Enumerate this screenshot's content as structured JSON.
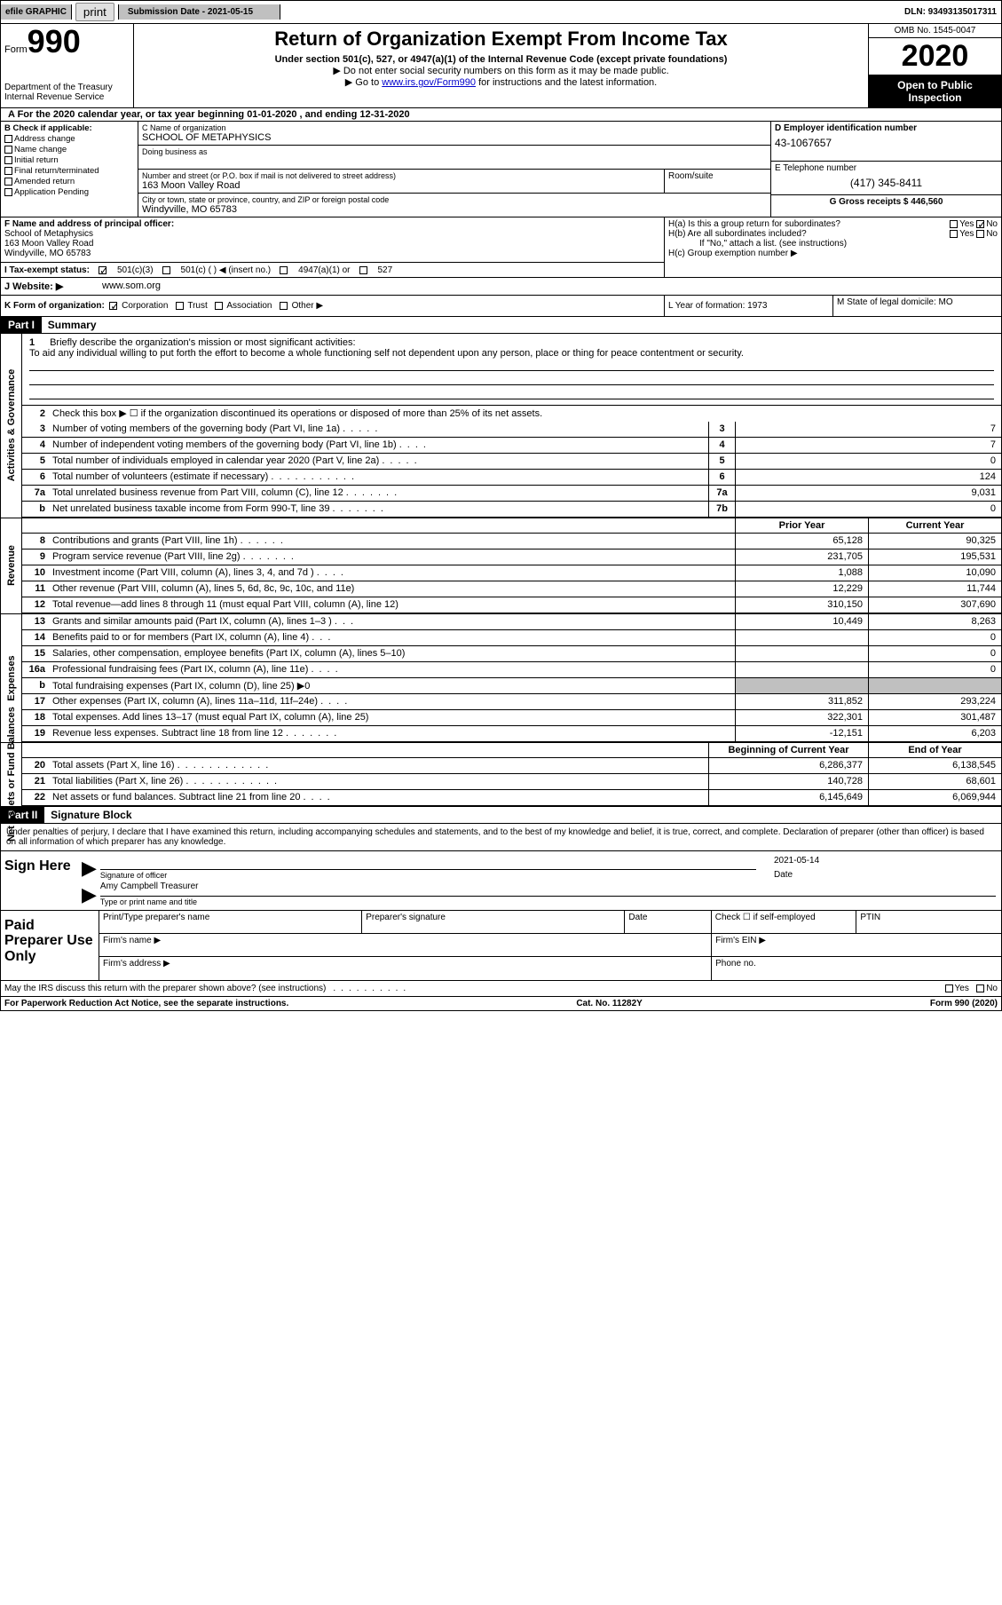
{
  "topbar": {
    "efile_prefix": "efile",
    "efile_text": "GRAPHIC",
    "print": "print",
    "submission_label": "Submission Date - 2021-05-15",
    "dln": "DLN: 93493135017311"
  },
  "header": {
    "form_word": "Form",
    "form_num": "990",
    "dept1": "Department of the Treasury",
    "dept2": "Internal Revenue Service",
    "title": "Return of Organization Exempt From Income Tax",
    "sub1": "Under section 501(c), 527, or 4947(a)(1) of the Internal Revenue Code (except private foundations)",
    "arrow1": "▶ Do not enter social security numbers on this form as it may be made public.",
    "arrow2_pre": "▶ Go to ",
    "arrow2_link": "www.irs.gov/Form990",
    "arrow2_post": " for instructions and the latest information.",
    "omb": "OMB No. 1545-0047",
    "year": "2020",
    "inspection": "Open to Public Inspection"
  },
  "row_a": "A For the 2020 calendar year, or tax year beginning 01-01-2020   , and ending 12-31-2020",
  "b_section": {
    "label": "B Check if applicable:",
    "address": "Address change",
    "name_change": "Name change",
    "initial": "Initial return",
    "final": "Final return/terminated",
    "amended": "Amended return",
    "pending": "Application Pending"
  },
  "c_section": {
    "c_label": "C Name of organization",
    "org_name": "SCHOOL OF METAPHYSICS",
    "dba_label": "Doing business as",
    "street_label": "Number and street (or P.O. box if mail is not delivered to street address)",
    "street": "163 Moon Valley Road",
    "room_label": "Room/suite",
    "city_label": "City or town, state or province, country, and ZIP or foreign postal code",
    "city": "Windyville, MO  65783"
  },
  "right_col": {
    "d_label": "D Employer identification number",
    "ein": "43-1067657",
    "e_label": "E Telephone number",
    "phone": "(417) 345-8411",
    "g_label": "G Gross receipts $ 446,560"
  },
  "f_section": {
    "label": "F  Name and address of principal officer:",
    "name": "School of Metaphysics",
    "street": "163 Moon Valley Road",
    "city": "Windyville, MO  65783"
  },
  "h_section": {
    "ha": "H(a)  Is this a group return for subordinates?",
    "hb": "H(b)  Are all subordinates included?",
    "hb_note": "If \"No,\" attach a list. (see instructions)",
    "hc": "H(c)  Group exemption number ▶",
    "yes": "Yes",
    "no": "No"
  },
  "tax_status": {
    "i_label": "I  Tax-exempt status:",
    "opt1": "501(c)(3)",
    "opt2": "501(c) (  ) ◀ (insert no.)",
    "opt3": "4947(a)(1) or",
    "opt4": "527"
  },
  "j_row": {
    "label": "J  Website: ▶",
    "val": "www.som.org"
  },
  "k_row": {
    "label": "K Form of organization:",
    "corp": "Corporation",
    "trust": "Trust",
    "assoc": "Association",
    "other": "Other ▶",
    "l_label": "L Year of formation: 1973",
    "m_label": "M State of legal domicile: MO"
  },
  "part1": {
    "header": "Part I",
    "title": "Summary"
  },
  "sidelabels": {
    "activities": "Activities & Governance",
    "revenue": "Revenue",
    "expenses": "Expenses",
    "netassets": "Net Assets or Fund Balances"
  },
  "line1": {
    "num": "1",
    "desc": "Briefly describe the organization's mission or most significant activities:",
    "text": "To aid any individual willing to put forth the effort to become a whole functioning self not dependent upon any person, place or thing for peace contentment or security."
  },
  "line2": {
    "num": "2",
    "desc": "Check this box ▶ ☐  if the organization discontinued its operations or disposed of more than 25% of its net assets."
  },
  "governance_lines": [
    {
      "num": "3",
      "desc": "Number of voting members of the governing body (Part VI, line 1a)",
      "dots": ".....",
      "box": "3",
      "val": "7"
    },
    {
      "num": "4",
      "desc": "Number of independent voting members of the governing body (Part VI, line 1b)",
      "dots": "....",
      "box": "4",
      "val": "7"
    },
    {
      "num": "5",
      "desc": "Total number of individuals employed in calendar year 2020 (Part V, line 2a)",
      "dots": ".....",
      "box": "5",
      "val": "0"
    },
    {
      "num": "6",
      "desc": "Total number of volunteers (estimate if necessary)",
      "dots": "...........",
      "box": "6",
      "val": "124"
    },
    {
      "num": "7a",
      "desc": "Total unrelated business revenue from Part VIII, column (C), line 12",
      "dots": ".......",
      "box": "7a",
      "val": "9,031"
    },
    {
      "num": "b",
      "desc": "Net unrelated business taxable income from Form 990-T, line 39",
      "dots": ".......",
      "box": "7b",
      "val": "0"
    }
  ],
  "colhdr": {
    "prior": "Prior Year",
    "current": "Current Year",
    "begin": "Beginning of Current Year",
    "end": "End of Year"
  },
  "revenue_lines": [
    {
      "num": "8",
      "desc": "Contributions and grants (Part VIII, line 1h)",
      "dots": "......",
      "prior": "65,128",
      "curr": "90,325"
    },
    {
      "num": "9",
      "desc": "Program service revenue (Part VIII, line 2g)",
      "dots": ".......",
      "prior": "231,705",
      "curr": "195,531"
    },
    {
      "num": "10",
      "desc": "Investment income (Part VIII, column (A), lines 3, 4, and 7d )",
      "dots": "....",
      "prior": "1,088",
      "curr": "10,090"
    },
    {
      "num": "11",
      "desc": "Other revenue (Part VIII, column (A), lines 5, 6d, 8c, 9c, 10c, and 11e)",
      "dots": "",
      "prior": "12,229",
      "curr": "11,744"
    },
    {
      "num": "12",
      "desc": "Total revenue—add lines 8 through 11 (must equal Part VIII, column (A), line 12)",
      "dots": "",
      "prior": "310,150",
      "curr": "307,690"
    }
  ],
  "expense_lines": [
    {
      "num": "13",
      "desc": "Grants and similar amounts paid (Part IX, column (A), lines 1–3 )",
      "dots": "...",
      "prior": "10,449",
      "curr": "8,263"
    },
    {
      "num": "14",
      "desc": "Benefits paid to or for members (Part IX, column (A), line 4)",
      "dots": "...",
      "prior": "",
      "curr": "0"
    },
    {
      "num": "15",
      "desc": "Salaries, other compensation, employee benefits (Part IX, column (A), lines 5–10)",
      "dots": "",
      "prior": "",
      "curr": "0"
    },
    {
      "num": "16a",
      "desc": "Professional fundraising fees (Part IX, column (A), line 11e)",
      "dots": "....",
      "prior": "",
      "curr": "0"
    },
    {
      "num": "b",
      "desc": "Total fundraising expenses (Part IX, column (D), line 25) ▶0",
      "dots": "",
      "prior": "SHADED",
      "curr": "SHADED"
    },
    {
      "num": "17",
      "desc": "Other expenses (Part IX, column (A), lines 11a–11d, 11f–24e)",
      "dots": "....",
      "prior": "311,852",
      "curr": "293,224"
    },
    {
      "num": "18",
      "desc": "Total expenses. Add lines 13–17 (must equal Part IX, column (A), line 25)",
      "dots": "",
      "prior": "322,301",
      "curr": "301,487"
    },
    {
      "num": "19",
      "desc": "Revenue less expenses. Subtract line 18 from line 12",
      "dots": ".......",
      "prior": "-12,151",
      "curr": "6,203"
    }
  ],
  "netasset_lines": [
    {
      "num": "20",
      "desc": "Total assets (Part X, line 16)",
      "dots": "............",
      "prior": "6,286,377",
      "curr": "6,138,545"
    },
    {
      "num": "21",
      "desc": "Total liabilities (Part X, line 26)",
      "dots": "............",
      "prior": "140,728",
      "curr": "68,601"
    },
    {
      "num": "22",
      "desc": "Net assets or fund balances. Subtract line 21 from line 20",
      "dots": "....",
      "prior": "6,145,649",
      "curr": "6,069,944"
    }
  ],
  "part2": {
    "header": "Part II",
    "title": "Signature Block",
    "perjury": "Under penalties of perjury, I declare that I have examined this return, including accompanying schedules and statements, and to the best of my knowledge and belief, it is true, correct, and complete. Declaration of preparer (other than officer) is based on all information of which preparer has any knowledge."
  },
  "sign": {
    "label": "Sign Here",
    "sig_of_officer": "Signature of officer",
    "date_val": "2021-05-14",
    "date_label": "Date",
    "name": "Amy Campbell Treasurer",
    "name_label": "Type or print name and title"
  },
  "paid": {
    "label": "Paid Preparer Use Only",
    "print_name": "Print/Type preparer's name",
    "prep_sig": "Preparer's signature",
    "date": "Date",
    "check_if": "Check ☐ if self-employed",
    "ptin": "PTIN",
    "firm_name": "Firm's name   ▶",
    "firm_ein": "Firm's EIN ▶",
    "firm_addr": "Firm's address ▶",
    "phone": "Phone no."
  },
  "footer": {
    "discuss": "May the IRS discuss this return with the preparer shown above? (see instructions)",
    "dots": "..........",
    "yes": "Yes",
    "no": "No",
    "paperwork": "For Paperwork Reduction Act Notice, see the separate instructions.",
    "cat": "Cat. No. 11282Y",
    "form": "Form 990 (2020)"
  }
}
